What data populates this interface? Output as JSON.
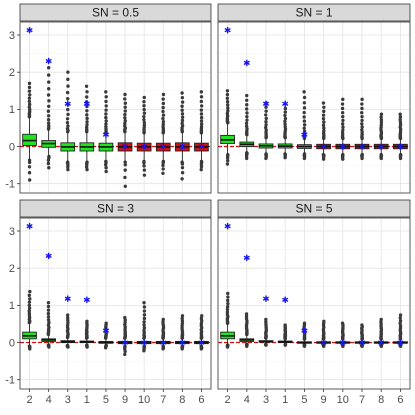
{
  "chart_data": {
    "type": "boxplot",
    "layout": "facet-grid-2x2",
    "x_categories": [
      "2",
      "4",
      "3",
      "1",
      "5",
      "9",
      "10",
      "7",
      "8",
      "6"
    ],
    "box_colors": {
      "2": "#1fe51f",
      "4": "#1fe51f",
      "3": "#1fe51f",
      "1": "#1fe51f",
      "5": "#1fe51f",
      "9": "#d41111",
      "10": "#d41111",
      "7": "#d41111",
      "8": "#d41111",
      "6": "#d41111"
    },
    "true_value_color": "#1515f0",
    "zero_line_color": "#d41111",
    "ylim": [
      -1.25,
      3.35
    ],
    "yticks": [
      -1,
      0,
      1,
      2,
      3
    ],
    "grid": true,
    "panels": [
      {
        "label": "SN =  0.5",
        "true_values": [
          3.13,
          2.3,
          1.15,
          1.15,
          0.32,
          0,
          0,
          0,
          0,
          0
        ],
        "boxes": [
          {
            "q1": 0.03,
            "median": 0.16,
            "q3": 0.33,
            "lower": -0.35,
            "upper": 0.78,
            "out_low": -0.88,
            "out_high": 1.68
          },
          {
            "q1": -0.02,
            "median": 0.08,
            "q3": 0.16,
            "lower": -0.25,
            "upper": 0.45,
            "out_low": -0.55,
            "out_high": 2.1
          },
          {
            "q1": -0.12,
            "median": -0.01,
            "q3": 0.1,
            "lower": -0.4,
            "upper": 0.38,
            "out_low": -0.6,
            "out_high": 1.98
          },
          {
            "q1": -0.12,
            "median": -0.01,
            "q3": 0.1,
            "lower": -0.4,
            "upper": 0.38,
            "out_low": -0.6,
            "out_high": 1.6
          },
          {
            "q1": -0.12,
            "median": -0.01,
            "q3": 0.09,
            "lower": -0.38,
            "upper": 0.35,
            "out_low": -0.65,
            "out_high": 1.45
          },
          {
            "q1": -0.12,
            "median": -0.01,
            "q3": 0.1,
            "lower": -0.4,
            "upper": 0.38,
            "out_low": -1.05,
            "out_high": 1.38
          },
          {
            "q1": -0.12,
            "median": -0.01,
            "q3": 0.09,
            "lower": -0.38,
            "upper": 0.35,
            "out_low": -0.75,
            "out_high": 1.3
          },
          {
            "q1": -0.12,
            "median": -0.01,
            "q3": 0.09,
            "lower": -0.38,
            "upper": 0.35,
            "out_low": -0.7,
            "out_high": 1.38
          },
          {
            "q1": -0.12,
            "median": -0.01,
            "q3": 0.1,
            "lower": -0.4,
            "upper": 0.38,
            "out_low": -0.85,
            "out_high": 1.42
          },
          {
            "q1": -0.12,
            "median": -0.01,
            "q3": 0.09,
            "lower": -0.38,
            "upper": 0.35,
            "out_low": -0.6,
            "out_high": 1.45
          }
        ]
      },
      {
        "label": "SN =  1",
        "true_values": [
          3.13,
          2.25,
          1.15,
          1.15,
          0.32,
          0,
          0,
          0,
          0,
          0
        ],
        "boxes": [
          {
            "q1": 0.08,
            "median": 0.18,
            "q3": 0.3,
            "lower": -0.2,
            "upper": 0.62,
            "out_low": -0.45,
            "out_high": 1.48
          },
          {
            "q1": 0.0,
            "median": 0.06,
            "q3": 0.12,
            "lower": -0.15,
            "upper": 0.3,
            "out_low": -0.3,
            "out_high": 1.35
          },
          {
            "q1": -0.04,
            "median": 0.02,
            "q3": 0.07,
            "lower": -0.18,
            "upper": 0.22,
            "out_low": -0.3,
            "out_high": 1.15
          },
          {
            "q1": -0.04,
            "median": 0.01,
            "q3": 0.07,
            "lower": -0.18,
            "upper": 0.22,
            "out_low": -0.28,
            "out_high": 1.0
          },
          {
            "q1": -0.05,
            "median": 0.0,
            "q3": 0.05,
            "lower": -0.18,
            "upper": 0.2,
            "out_low": -0.3,
            "out_high": 1.45
          },
          {
            "q1": -0.06,
            "median": 0.0,
            "q3": 0.06,
            "lower": -0.2,
            "upper": 0.2,
            "out_low": -0.32,
            "out_high": 1.15
          },
          {
            "q1": -0.06,
            "median": 0.0,
            "q3": 0.06,
            "lower": -0.2,
            "upper": 0.2,
            "out_low": -0.32,
            "out_high": 1.25
          },
          {
            "q1": -0.06,
            "median": 0.0,
            "q3": 0.06,
            "lower": -0.2,
            "upper": 0.2,
            "out_low": -0.3,
            "out_high": 1.25
          },
          {
            "q1": -0.06,
            "median": 0.0,
            "q3": 0.06,
            "lower": -0.2,
            "upper": 0.2,
            "out_low": -0.3,
            "out_high": 0.85
          },
          {
            "q1": -0.06,
            "median": 0.0,
            "q3": 0.06,
            "lower": -0.2,
            "upper": 0.2,
            "out_low": -0.3,
            "out_high": 0.85
          }
        ]
      },
      {
        "label": "SN =  3",
        "true_values": [
          3.13,
          2.33,
          1.18,
          1.15,
          0.32,
          0,
          0,
          0,
          0,
          0
        ],
        "boxes": [
          {
            "q1": 0.1,
            "median": 0.18,
            "q3": 0.28,
            "lower": -0.08,
            "upper": 0.52,
            "out_low": -0.15,
            "out_high": 1.35
          },
          {
            "q1": 0.03,
            "median": 0.07,
            "q3": 0.1,
            "lower": -0.05,
            "upper": 0.2,
            "out_low": -0.1,
            "out_high": 1.05
          },
          {
            "q1": 0.0,
            "median": 0.02,
            "q3": 0.05,
            "lower": -0.06,
            "upper": 0.12,
            "out_low": -0.1,
            "out_high": 0.72
          },
          {
            "q1": 0.0,
            "median": 0.02,
            "q3": 0.04,
            "lower": -0.05,
            "upper": 0.1,
            "out_low": -0.1,
            "out_high": 0.55
          },
          {
            "q1": -0.02,
            "median": 0.0,
            "q3": 0.03,
            "lower": -0.06,
            "upper": 0.1,
            "out_low": -0.12,
            "out_high": 0.5
          },
          {
            "q1": -0.03,
            "median": 0.0,
            "q3": 0.03,
            "lower": -0.08,
            "upper": 0.1,
            "out_low": -0.3,
            "out_high": 0.65
          },
          {
            "q1": -0.03,
            "median": 0.0,
            "q3": 0.03,
            "lower": -0.08,
            "upper": 0.1,
            "out_low": -0.2,
            "out_high": 1.05
          },
          {
            "q1": -0.03,
            "median": 0.0,
            "q3": 0.03,
            "lower": -0.08,
            "upper": 0.1,
            "out_low": -0.15,
            "out_high": 0.6
          },
          {
            "q1": -0.03,
            "median": 0.0,
            "q3": 0.03,
            "lower": -0.08,
            "upper": 0.1,
            "out_low": -0.15,
            "out_high": 0.7
          },
          {
            "q1": -0.03,
            "median": 0.0,
            "q3": 0.03,
            "lower": -0.08,
            "upper": 0.1,
            "out_low": -0.15,
            "out_high": 0.7
          }
        ]
      },
      {
        "label": "SN =  5",
        "true_values": [
          3.13,
          2.28,
          1.18,
          1.15,
          0.32,
          0,
          0,
          0,
          0,
          0
        ],
        "boxes": [
          {
            "q1": 0.1,
            "median": 0.18,
            "q3": 0.28,
            "lower": -0.05,
            "upper": 0.5,
            "out_low": -0.1,
            "out_high": 1.3
          },
          {
            "q1": 0.03,
            "median": 0.07,
            "q3": 0.1,
            "lower": -0.03,
            "upper": 0.2,
            "out_low": -0.08,
            "out_high": 0.75
          },
          {
            "q1": 0.01,
            "median": 0.03,
            "q3": 0.05,
            "lower": -0.03,
            "upper": 0.1,
            "out_low": -0.05,
            "out_high": 0.6
          },
          {
            "q1": 0.0,
            "median": 0.02,
            "q3": 0.04,
            "lower": -0.03,
            "upper": 0.08,
            "out_low": -0.05,
            "out_high": 0.45
          },
          {
            "q1": -0.01,
            "median": 0.0,
            "q3": 0.02,
            "lower": -0.04,
            "upper": 0.07,
            "out_low": -0.08,
            "out_high": 0.5
          },
          {
            "q1": -0.02,
            "median": 0.0,
            "q3": 0.02,
            "lower": -0.05,
            "upper": 0.07,
            "out_low": -0.08,
            "out_high": 0.55
          },
          {
            "q1": -0.02,
            "median": 0.0,
            "q3": 0.02,
            "lower": -0.05,
            "upper": 0.07,
            "out_low": -0.08,
            "out_high": 0.5
          },
          {
            "q1": -0.02,
            "median": 0.0,
            "q3": 0.02,
            "lower": -0.05,
            "upper": 0.07,
            "out_low": -0.08,
            "out_high": 0.45
          },
          {
            "q1": -0.02,
            "median": 0.0,
            "q3": 0.02,
            "lower": -0.05,
            "upper": 0.07,
            "out_low": -0.08,
            "out_high": 0.6
          },
          {
            "q1": -0.02,
            "median": 0.0,
            "q3": 0.02,
            "lower": -0.05,
            "upper": 0.07,
            "out_low": -0.08,
            "out_high": 0.72
          }
        ]
      }
    ]
  }
}
